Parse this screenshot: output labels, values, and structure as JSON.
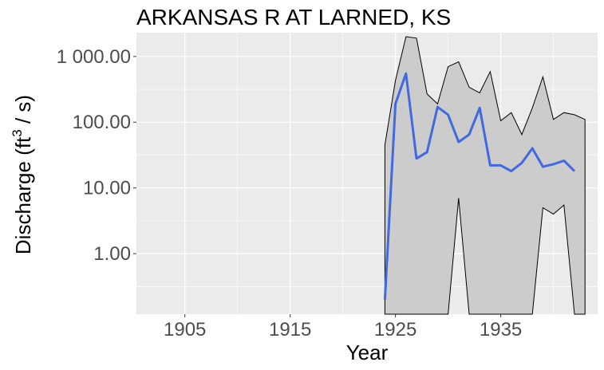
{
  "chart_data": {
    "type": "area",
    "title": "ARKANSAS R AT LARNED, KS",
    "xlabel": "Year",
    "ylabel_main": "Discharge (ft",
    "ylabel_sup": "3",
    "ylabel_tail": "/ s)",
    "x_scale": "linear",
    "y_scale": "log10",
    "xlim": [
      1900.4,
      1944.2
    ],
    "ylim": [
      0.12,
      2300
    ],
    "x_ticks": [
      1905,
      1915,
      1925,
      1935
    ],
    "x_tick_labels": [
      "1905",
      "1915",
      "1925",
      "1935"
    ],
    "y_ticks": [
      1,
      10,
      100,
      1000
    ],
    "y_tick_labels": [
      "1.00",
      "10.00",
      "100.00",
      "1 000.00"
    ],
    "grid": true,
    "legend": "none",
    "colors": {
      "panel_background": "#ebebeb",
      "grid": "#ffffff",
      "ribbon_fill": "#cccccc",
      "ribbon_outline": "#000000",
      "mean_line": "#4169e1"
    },
    "x": [
      1924,
      1925,
      1926,
      1927,
      1928,
      1929,
      1930,
      1931,
      1932,
      1933,
      1934,
      1935,
      1936,
      1937,
      1938,
      1939,
      1940,
      1941,
      1942,
      1943
    ],
    "series": [
      {
        "role": "mean",
        "values": [
          0.2,
          190,
          550,
          28,
          35,
          170,
          130,
          50,
          65,
          165,
          22,
          22,
          18,
          24,
          40,
          21,
          23,
          26,
          18,
          null
        ]
      },
      {
        "role": "upper",
        "values": [
          45,
          430,
          2000,
          1900,
          270,
          190,
          700,
          830,
          340,
          280,
          590,
          105,
          140,
          65,
          165,
          490,
          110,
          140,
          130,
          110
        ]
      },
      {
        "role": "lower",
        "values": [
          0.12,
          0.12,
          0.12,
          0.12,
          0.12,
          0.12,
          0.12,
          7,
          0.12,
          0.12,
          0.12,
          0.12,
          0.12,
          0.12,
          0.12,
          5,
          4,
          5.5,
          0.12,
          0.12
        ]
      }
    ]
  }
}
